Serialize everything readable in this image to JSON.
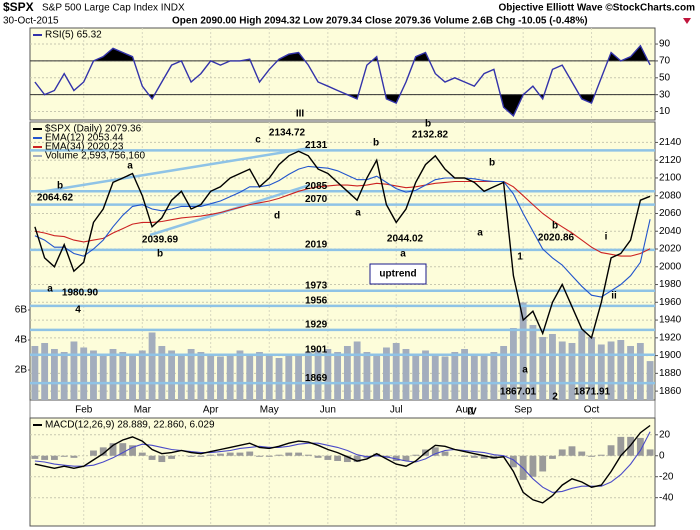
{
  "header": {
    "symbol": "$SPX",
    "name": "S&P 500 Large Cap Index INDX",
    "date": "30-Oct-2015",
    "quote": "Open 2090.00  High 2094.32  Low 2079.34  Close 2079.36  Volume 2.6B  Chg -10.05 (-0.48%)",
    "credit": "Objective Elliott Wave ©StockCharts.com"
  },
  "chart_data": [
    {
      "type": "line",
      "ylim": [
        0,
        109
      ],
      "yticks": [
        10,
        30,
        50,
        70,
        90
      ],
      "grid": true,
      "shade_above": 70,
      "shade_below": 30,
      "series": [
        {
          "name": "RSI(5) 65.32",
          "color": "#3333aa",
          "values": [
            45,
            30,
            35,
            55,
            35,
            45,
            70,
            75,
            85,
            80,
            75,
            40,
            25,
            45,
            65,
            70,
            45,
            55,
            70,
            65,
            70,
            70,
            72,
            45,
            60,
            72,
            78,
            80,
            65,
            45,
            40,
            35,
            30,
            25,
            65,
            75,
            25,
            20,
            45,
            75,
            80,
            55,
            45,
            50,
            45,
            40,
            55,
            60,
            15,
            5,
            30,
            40,
            25,
            60,
            65,
            45,
            25,
            20,
            50,
            80,
            70,
            75,
            88,
            65.32
          ]
        }
      ]
    },
    {
      "type": "line",
      "ylim": [
        1850,
        2163
      ],
      "yticks": [
        1860,
        1880,
        1900,
        1920,
        1940,
        1960,
        1980,
        2000,
        2020,
        2040,
        2060,
        2080,
        2100,
        2120,
        2140
      ],
      "grid": true,
      "y2lim": [
        0,
        18530000000
      ],
      "y2ticks": [
        {
          "value": 2000000000,
          "label": "2B"
        },
        {
          "value": 4000000000,
          "label": "4B"
        },
        {
          "value": 6000000000,
          "label": "6B"
        }
      ],
      "categories": [
        null,
        null,
        null,
        null,
        null,
        "Feb",
        null,
        null,
        null,
        null,
        null,
        "Mar",
        null,
        null,
        null,
        null,
        null,
        null,
        "Apr",
        null,
        null,
        null,
        null,
        null,
        "May",
        null,
        null,
        null,
        null,
        null,
        "Jun",
        null,
        null,
        null,
        null,
        null,
        null,
        "Jul",
        null,
        null,
        null,
        null,
        null,
        null,
        "Aug",
        null,
        null,
        null,
        null,
        null,
        "Sep",
        null,
        null,
        null,
        null,
        null,
        null,
        "Oct",
        null,
        null,
        null,
        null,
        null,
        null
      ],
      "levels": [
        2131,
        2085,
        2070,
        2019,
        1973,
        1956,
        1929,
        1901,
        1869
      ],
      "level_color": "#8fc3e6",
      "series": [
        {
          "name": "Volume 2,593,756,160",
          "color": "#a3adbd",
          "axis": "y2",
          "values": [
            3600000000.0,
            3800000000.0,
            3400000000.0,
            3200000000.0,
            3900000000.0,
            3500000000.0,
            3300000000.0,
            3100000000.0,
            3400000000.0,
            3200000000.0,
            3000000000.0,
            3300000000.0,
            4500000000.0,
            3600000000.0,
            3300000000.0,
            3100000000.0,
            3400000000.0,
            3200000000.0,
            3000000000.0,
            2900000000.0,
            3100000000.0,
            3300000000.0,
            3000000000.0,
            3200000000.0,
            3100000000.0,
            2800000000.0,
            3000000000.0,
            3100000000.0,
            3200000000.0,
            3300000000.0,
            3400000000.0,
            3200000000.0,
            3600000000.0,
            3900000000.0,
            3200000000.0,
            3100000000.0,
            3500000000.0,
            3800000000.0,
            3400000000.0,
            3100000000.0,
            3300000000.0,
            3000000000.0,
            2900000000.0,
            3200000000.0,
            3400000000.0,
            3100000000.0,
            3000000000.0,
            3200000000.0,
            3600000000.0,
            4800000000.0,
            6500000000.0,
            5000000000.0,
            4200000000.0,
            4400000000.0,
            3900000000.0,
            3800000000.0,
            4600000000.0,
            4200000000.0,
            3700000000.0,
            3900000000.0,
            4000000000.0,
            3600000000.0,
            3800000000.0,
            2593756160
          ]
        },
        {
          "name": "EMA(34) 2020.23",
          "color": "#cc2222",
          "values": [
            2040,
            2038,
            2035,
            2034,
            2030,
            2028,
            2030,
            2032,
            2038,
            2043,
            2048,
            2050,
            2050,
            2051,
            2053,
            2055,
            2056,
            2057,
            2059,
            2061,
            2064,
            2067,
            2070,
            2072,
            2074,
            2077,
            2081,
            2085,
            2088,
            2090,
            2091,
            2092,
            2092,
            2091,
            2092,
            2094,
            2093,
            2091,
            2089,
            2090,
            2092,
            2094,
            2095,
            2096,
            2096,
            2096,
            2096,
            2096,
            2096,
            2090,
            2080,
            2070,
            2060,
            2052,
            2045,
            2038,
            2030,
            2022,
            2016,
            2014,
            2012,
            2012,
            2015,
            2020.23
          ]
        },
        {
          "name": "EMA(12) 2053.44",
          "color": "#2255cc",
          "values": [
            2035,
            2030,
            2022,
            2022,
            2015,
            2012,
            2020,
            2030,
            2045,
            2058,
            2068,
            2070,
            2065,
            2063,
            2065,
            2068,
            2068,
            2068,
            2071,
            2074,
            2079,
            2084,
            2090,
            2090,
            2092,
            2097,
            2104,
            2110,
            2113,
            2112,
            2111,
            2108,
            2103,
            2098,
            2098,
            2102,
            2095,
            2088,
            2084,
            2086,
            2092,
            2098,
            2100,
            2100,
            2100,
            2099,
            2097,
            2096,
            2096,
            2082,
            2060,
            2040,
            2020,
            2010,
            2002,
            1990,
            1978,
            1968,
            1966,
            1973,
            1980,
            1990,
            2005,
            2053.44
          ]
        },
        {
          "name": "$SPX (Daily) 2079.36",
          "color": "#000000",
          "values": [
            2045,
            2010,
            2000,
            2025,
            1995,
            2005,
            2050,
            2065,
            2095,
            2100,
            2105,
            2080,
            2045,
            2055,
            2075,
            2085,
            2065,
            2070,
            2085,
            2090,
            2100,
            2105,
            2110,
            2090,
            2100,
            2115,
            2125,
            2130,
            2125,
            2110,
            2105,
            2095,
            2085,
            2075,
            2100,
            2120,
            2070,
            2050,
            2065,
            2095,
            2115,
            2125,
            2110,
            2100,
            2100,
            2095,
            2085,
            2090,
            2095,
            1990,
            1940,
            1950,
            1925,
            1960,
            1980,
            1955,
            1930,
            1920,
            1960,
            2010,
            2015,
            2030,
            2075,
            2079.36
          ]
        }
      ],
      "annotations": [
        {
          "text": "III",
          "color": "#2222cc"
        },
        {
          "text": "2134.72",
          "color": "#000000"
        },
        {
          "text": "c",
          "color": "#8b1a89"
        },
        {
          "text": "a",
          "color": "#8b1a89"
        },
        {
          "text": "b",
          "color": "#1a1a8a"
        },
        {
          "text": "2064.62",
          "color": "#000000"
        },
        {
          "text": "2039.69",
          "color": "#000000"
        },
        {
          "text": "b",
          "color": "#8b1a89"
        },
        {
          "text": "d",
          "color": "#8b1a89"
        },
        {
          "text": "b",
          "color": "#8b1a89"
        },
        {
          "text": "a",
          "color": "#8b1a89"
        },
        {
          "text": "b",
          "color": "#000000"
        },
        {
          "text": "2132.82",
          "color": "#000000"
        },
        {
          "text": "a",
          "color": "#000000"
        },
        {
          "text": "2044.02",
          "color": "#000000"
        },
        {
          "text": "a",
          "color": "#8b1a89"
        },
        {
          "text": "b",
          "color": "#8b1a89"
        },
        {
          "text": "1",
          "color": "#000000"
        },
        {
          "text": "b",
          "color": "#8b1a89"
        },
        {
          "text": "2020.86",
          "color": "#000000"
        },
        {
          "text": "i",
          "color": "#8b1a89"
        },
        {
          "text": "ii",
          "color": "#8b1a89"
        },
        {
          "text": "a",
          "color": "#8b1a89"
        },
        {
          "text": "1867.01",
          "color": "#000000"
        },
        {
          "text": "1871.91",
          "color": "#000000"
        },
        {
          "text": "2",
          "color": "#000000"
        },
        {
          "text": "IV",
          "color": "#2222cc"
        },
        {
          "text": "a",
          "color": "#1a1a8a"
        },
        {
          "text": "1980.90",
          "color": "#000000"
        },
        {
          "text": "4",
          "color": "#000000"
        },
        {
          "text": "uptrend",
          "color": "#1a1a8a"
        }
      ]
    },
    {
      "type": "line",
      "ylim": [
        -67,
        36
      ],
      "yticks": [
        -40,
        -20,
        0,
        20
      ],
      "grid": true,
      "label": "MACD(12,26,9) 28.889, 22.860, 6.029",
      "series": [
        {
          "kind": "bar",
          "color": "#9a9a9a",
          "values": [
            -3,
            -4,
            -4,
            -1,
            -2,
            0,
            5,
            8,
            12,
            12,
            10,
            3,
            -4,
            -6,
            -3,
            0,
            -1,
            -1,
            1,
            2,
            3,
            3,
            4,
            -1,
            -1,
            1,
            3,
            3,
            1,
            -2,
            -4,
            -5,
            -6,
            -6,
            -2,
            2,
            -2,
            -5,
            -5,
            1,
            6,
            8,
            4,
            0,
            -1,
            -2,
            -3,
            -3,
            -1,
            -11,
            -23,
            -20,
            -15,
            -3,
            6,
            9,
            4,
            -1,
            1,
            10,
            18,
            18,
            17,
            6.029
          ]
        },
        {
          "color": "#4a4ac8",
          "values": [
            -5,
            -6,
            -8,
            -9,
            -10,
            -10,
            -9,
            -6,
            -2,
            3,
            8,
            11,
            10,
            8,
            6,
            5,
            4,
            3,
            3,
            4,
            5,
            7,
            8,
            9,
            8,
            8,
            9,
            11,
            12,
            12,
            10,
            8,
            5,
            1,
            -1,
            0,
            -1,
            -3,
            -5,
            -6,
            -3,
            2,
            5,
            6,
            5,
            4,
            3,
            1,
            0,
            -4,
            -12,
            -22,
            -30,
            -35,
            -34,
            -31,
            -29,
            -29,
            -29,
            -25,
            -18,
            -8,
            5,
            22.86
          ]
        },
        {
          "color": "#000000",
          "values": [
            -8,
            -10,
            -12,
            -10,
            -12,
            -10,
            -4,
            2,
            10,
            15,
            18,
            14,
            6,
            2,
            3,
            5,
            3,
            2,
            4,
            6,
            8,
            10,
            12,
            8,
            7,
            9,
            12,
            14,
            13,
            10,
            6,
            3,
            -1,
            -5,
            -3,
            2,
            -3,
            -8,
            -10,
            -5,
            3,
            10,
            9,
            6,
            4,
            2,
            0,
            -2,
            -1,
            -15,
            -35,
            -42,
            -45,
            -38,
            -28,
            -22,
            -25,
            -30,
            -28,
            -15,
            0,
            10,
            22,
            28.889
          ]
        }
      ]
    }
  ]
}
